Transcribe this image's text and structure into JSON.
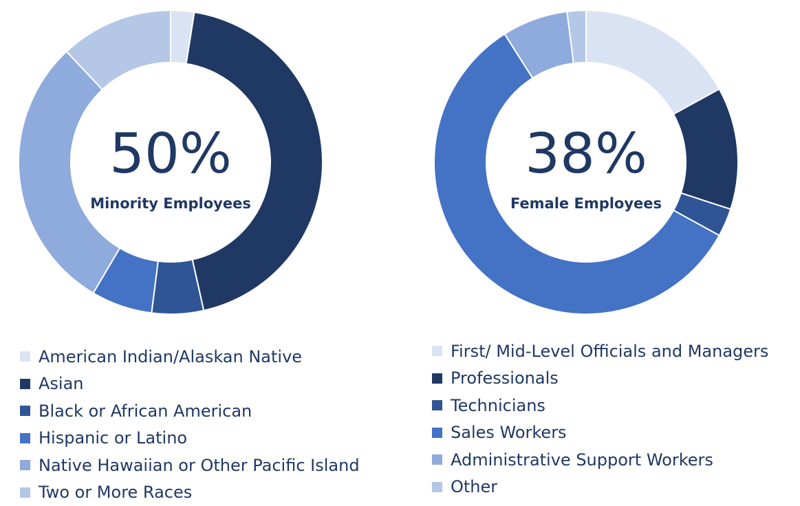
{
  "chart_data": [
    {
      "type": "pie",
      "center_value": "50%",
      "center_label": "Minority Employees",
      "categories": [
        "American Indian/Alaskan Native",
        "Asian",
        "Black or African American",
        "Hispanic or Latino",
        "Native Hawaiian or Other Pacific Island",
        "Two or More Races"
      ],
      "values": [
        2.5,
        44,
        5.5,
        6.5,
        29.5,
        12
      ],
      "colors": [
        "#dae3f3",
        "#203864",
        "#2f5597",
        "#4472c4",
        "#8faadc",
        "#b4c7e7"
      ],
      "legend_position": "bottom"
    },
    {
      "type": "pie",
      "center_value": "38%",
      "center_label": "Female Employees",
      "categories": [
        "First/ Mid-Level Officials and Managers",
        "Professionals",
        "Technicians",
        "Sales Workers",
        "Administrative Support Workers",
        "Other"
      ],
      "values": [
        17,
        13,
        3,
        58,
        7,
        2
      ],
      "colors": [
        "#dae3f3",
        "#203864",
        "#2f5597",
        "#4472c4",
        "#8faadc",
        "#b4c7e7"
      ],
      "legend_position": "bottom"
    }
  ]
}
